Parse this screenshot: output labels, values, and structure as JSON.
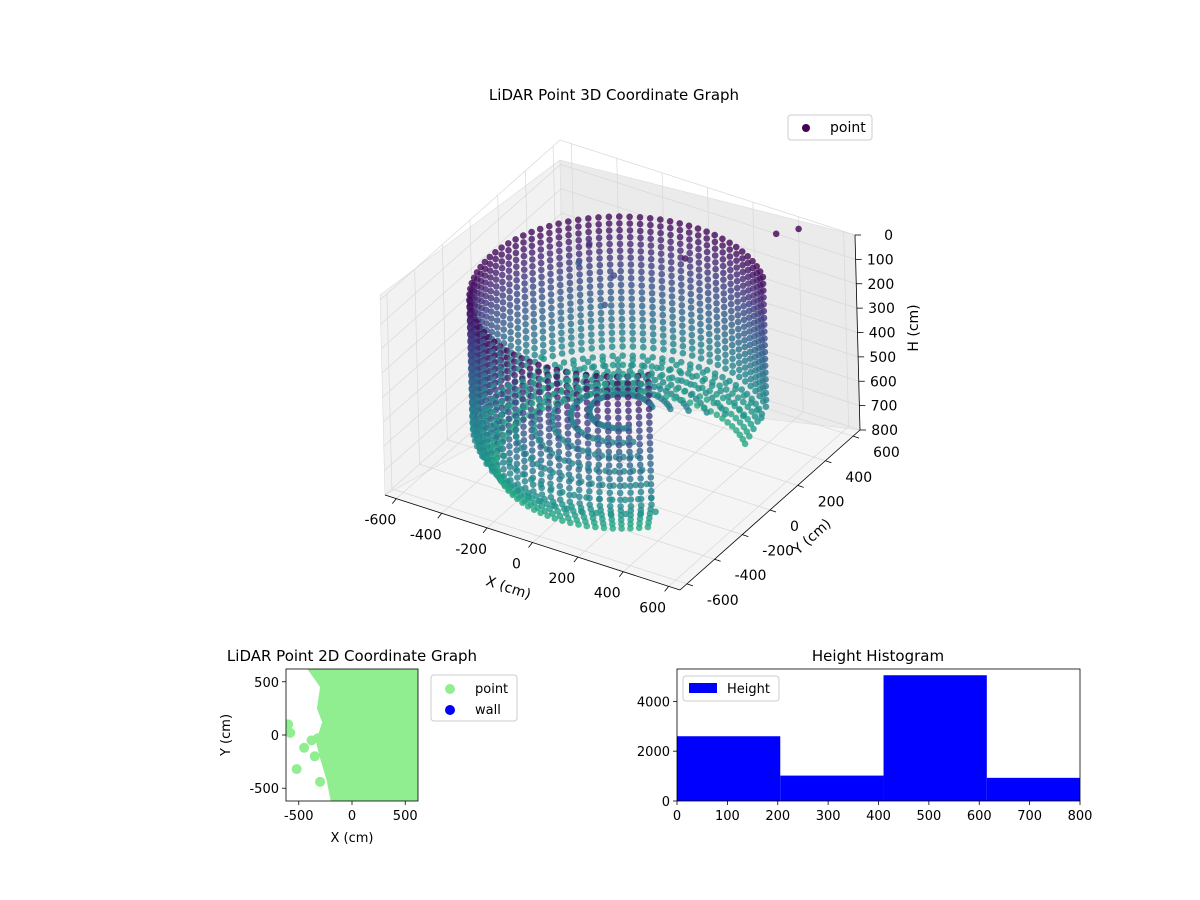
{
  "chart_data": [
    {
      "type": "scatter",
      "projection": "3d",
      "title": "LiDAR Point 3D Coordinate Graph",
      "xlabel": "X (cm)",
      "ylabel": "Y (cm)",
      "zlabel": "H (cm)",
      "xlim": [
        -650,
        650
      ],
      "ylim": [
        -650,
        650
      ],
      "zlim": [
        0,
        800
      ],
      "z_inverted": true,
      "x_ticks": [
        "-600",
        "-400",
        "-200",
        "0",
        "200",
        "400",
        "600"
      ],
      "y_ticks": [
        "-600",
        "-400",
        "-200",
        "0",
        "200",
        "400",
        "600"
      ],
      "z_ticks": [
        "0",
        "100",
        "200",
        "300",
        "400",
        "500",
        "600",
        "700",
        "800"
      ],
      "grid": true,
      "colormap": "viridis",
      "legend": {
        "placement": "top-right",
        "entries": [
          "point"
        ]
      },
      "series": [
        {
          "name": "point",
          "description": "ring-shaped wall of points around the origin",
          "wall": {
            "radius_cm": 560,
            "arc_start_deg": 45,
            "arc_end_deg": 315,
            "h_min": 120,
            "h_max": 800
          },
          "scattered": [
            {
              "x": -600,
              "y": 400,
              "h": 750
            },
            {
              "x": -550,
              "y": 600,
              "h": 450
            },
            {
              "x": -450,
              "y": 520,
              "h": 300
            },
            {
              "x": -300,
              "y": 450,
              "h": 350
            },
            {
              "x": -250,
              "y": 300,
              "h": 380
            },
            {
              "x": 50,
              "y": 400,
              "h": 150
            },
            {
              "x": 300,
              "y": 650,
              "h": 100
            },
            {
              "x": 400,
              "y": 650,
              "h": 50
            }
          ]
        }
      ]
    },
    {
      "type": "scatter",
      "title": "LiDAR Point 2D Coordinate Graph",
      "xlabel": "X (cm)",
      "ylabel": "Y (cm)",
      "xlim": [
        -620,
        620
      ],
      "ylim": [
        -620,
        620
      ],
      "x_ticks": [
        "-500",
        "0",
        "500"
      ],
      "y_ticks": [
        "-500",
        "0",
        "500"
      ],
      "legend": {
        "placement": "outside-right",
        "entries": [
          "point",
          "wall"
        ]
      },
      "colors": {
        "point": "#90ee90",
        "wall": "#0000ff"
      },
      "series": [
        {
          "name": "point",
          "region_outline": [
            [
              -420,
              620
            ],
            [
              -300,
              450
            ],
            [
              -330,
              250
            ],
            [
              -280,
              120
            ],
            [
              -340,
              -60
            ],
            [
              -300,
              -220
            ],
            [
              -240,
              -420
            ],
            [
              -200,
              -620
            ],
            [
              620,
              -620
            ],
            [
              620,
              620
            ]
          ],
          "isolated_points": [
            [
              -600,
              100
            ],
            [
              -580,
              20
            ],
            [
              -450,
              -120
            ],
            [
              -380,
              -50
            ],
            [
              -320,
              -30
            ],
            [
              -350,
              -200
            ],
            [
              -520,
              -320
            ],
            [
              -300,
              -440
            ]
          ]
        },
        {
          "name": "wall",
          "points": []
        }
      ]
    },
    {
      "type": "bar",
      "title": "Height Histogram",
      "xlim": [
        0,
        800
      ],
      "ylim": [
        0,
        5300
      ],
      "x_ticks": [
        "0",
        "100",
        "200",
        "300",
        "400",
        "500",
        "600",
        "700",
        "800"
      ],
      "y_ticks": [
        "0",
        "2000",
        "4000"
      ],
      "legend": {
        "placement": "top-left",
        "entries": [
          "Height"
        ]
      },
      "colors": {
        "Height": "#0000ff"
      },
      "series": [
        {
          "name": "Height",
          "bins": [
            {
              "from": 0,
              "to": 205,
              "count": 2600
            },
            {
              "from": 205,
              "to": 410,
              "count": 1020
            },
            {
              "from": 410,
              "to": 615,
              "count": 5050
            },
            {
              "from": 615,
              "to": 800,
              "count": 930
            }
          ]
        }
      ]
    }
  ]
}
